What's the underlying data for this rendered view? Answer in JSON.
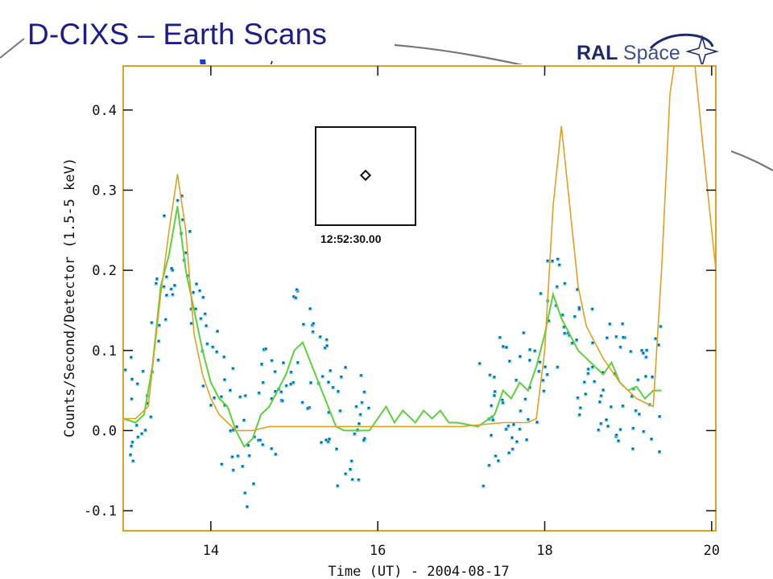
{
  "slide": {
    "title": "D-CIXS – Earth Scans",
    "logo_text_bold": "RAL",
    "logo_text_light": "Space"
  },
  "chart_data": {
    "type": "scatter",
    "xlabel": "Time (UT) - 2004-08-17",
    "ylabel": "Counts/Second/Detector (1.5-5 keV)",
    "xlim": [
      12.95,
      20.05
    ],
    "ylim": [
      -0.125,
      0.455
    ],
    "x_ticks": [
      14,
      16,
      18,
      20
    ],
    "y_ticks": [
      -0.1,
      0.0,
      0.1,
      0.2,
      0.3,
      0.4
    ],
    "x_tick_labels": [
      "14",
      "16",
      "18",
      "20"
    ],
    "y_tick_labels": [
      "-0.1",
      "0.0",
      "0.1",
      "0.2",
      "0.3",
      "0.4"
    ],
    "grid": false,
    "colors": {
      "points_cyan": "#3cc7d6",
      "points_blue": "#2233aa",
      "line_green": "#5bd23a",
      "line_orange": "#e0a020"
    },
    "inset_timestamp": "12:52:30.00",
    "series": [
      {
        "kind": "line",
        "color": "green",
        "x": [
          12.95,
          13.1,
          13.2,
          13.3,
          13.4,
          13.5,
          13.6,
          13.7,
          13.8,
          13.9,
          14.0,
          14.1,
          14.2,
          14.3,
          14.4,
          14.5,
          14.6,
          14.7,
          14.8,
          14.9,
          15.0,
          15.1,
          15.5,
          15.6,
          15.9,
          16.1,
          16.2,
          16.3,
          16.45,
          16.55,
          16.65,
          16.75,
          16.85,
          16.95,
          17.2,
          17.4,
          17.5,
          17.6,
          17.7,
          17.8,
          17.9,
          18.0,
          18.1,
          18.2,
          18.3,
          18.4,
          18.5,
          18.6,
          18.7,
          18.8,
          18.9,
          19.0,
          19.1,
          19.2,
          19.3,
          19.4
        ],
        "y": [
          0.015,
          0.01,
          0.02,
          0.08,
          0.18,
          0.22,
          0.28,
          0.2,
          0.15,
          0.1,
          0.06,
          0.04,
          0.03,
          0.0,
          -0.02,
          -0.01,
          0.02,
          0.03,
          0.05,
          0.07,
          0.1,
          0.11,
          0.005,
          0.0,
          0.0,
          0.03,
          0.01,
          0.025,
          0.01,
          0.025,
          0.015,
          0.025,
          0.01,
          0.01,
          0.005,
          0.02,
          0.05,
          0.04,
          0.06,
          0.05,
          0.08,
          0.12,
          0.17,
          0.14,
          0.12,
          0.1,
          0.09,
          0.08,
          0.07,
          0.085,
          0.06,
          0.05,
          0.055,
          0.04,
          0.05,
          0.05
        ]
      },
      {
        "kind": "line",
        "color": "orange",
        "x": [
          12.95,
          13.1,
          13.25,
          13.4,
          13.5,
          13.6,
          13.7,
          13.8,
          13.9,
          14.0,
          14.1,
          14.2,
          14.3,
          14.5,
          14.7,
          14.9,
          15.1,
          15.5,
          16.0,
          16.5,
          17.0,
          17.5,
          17.7,
          17.8,
          17.9,
          18.0,
          18.1,
          18.2,
          18.3,
          18.4,
          18.5,
          18.7,
          18.9,
          19.1,
          19.3,
          19.4,
          19.5,
          19.55,
          19.8,
          19.9,
          20.05
        ],
        "y": [
          0.015,
          0.015,
          0.03,
          0.17,
          0.25,
          0.32,
          0.25,
          0.12,
          0.07,
          0.04,
          0.02,
          0.01,
          0.0,
          0.0,
          0.005,
          0.005,
          0.005,
          0.005,
          0.005,
          0.005,
          0.005,
          0.01,
          0.01,
          0.01,
          0.015,
          0.1,
          0.28,
          0.38,
          0.28,
          0.18,
          0.13,
          0.09,
          0.06,
          0.04,
          0.03,
          0.2,
          0.42,
          0.455,
          0.455,
          0.35,
          0.2
        ]
      }
    ]
  }
}
